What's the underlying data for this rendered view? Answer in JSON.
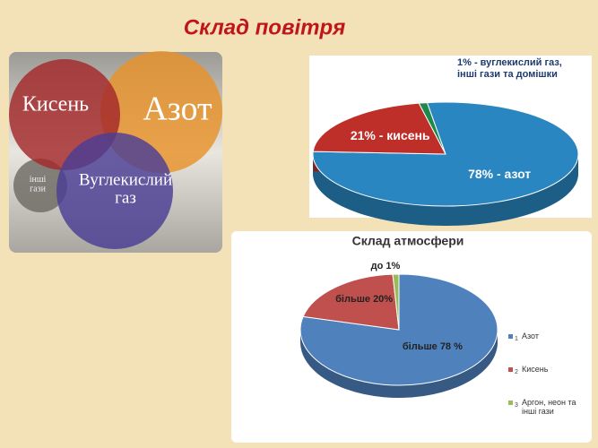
{
  "title": "Склад повітря",
  "venn": {
    "circles": [
      {
        "lines": [
          "Кисень"
        ],
        "color": "#a4282b"
      },
      {
        "lines": [
          "Азот"
        ],
        "color": "#e8932a"
      },
      {
        "lines": [
          "Вуглекислий",
          "газ"
        ],
        "color": "#4b3d95"
      },
      {
        "lines": [
          "інші",
          "гази"
        ],
        "color": "#6e6a64"
      }
    ]
  },
  "chart_data": [
    {
      "type": "pie",
      "categories": [
        "азот",
        "кисень",
        "вуглекислий газ, інші гази та домішки"
      ],
      "values": [
        78,
        21,
        1
      ],
      "value_labels": [
        "78% - азот",
        "21% - кисень",
        "1% - вуглекислий газ, інші гази та домішки"
      ],
      "colors": [
        "#2a86c0",
        "#be2f2a",
        "#1d8a4c"
      ]
    },
    {
      "type": "pie",
      "title": "Склад атмосфери",
      "categories": [
        "Азот",
        "Кисень",
        "Аргон, неон та інші гази"
      ],
      "legend_numbers": [
        "1",
        "2",
        "3"
      ],
      "values": [
        78,
        20,
        1
      ],
      "value_labels": [
        "більше 78 %",
        "більше 20%",
        "до 1%"
      ],
      "colors": [
        "#4f81bd",
        "#c0504d",
        "#9bbb59"
      ],
      "legend": "right"
    }
  ]
}
